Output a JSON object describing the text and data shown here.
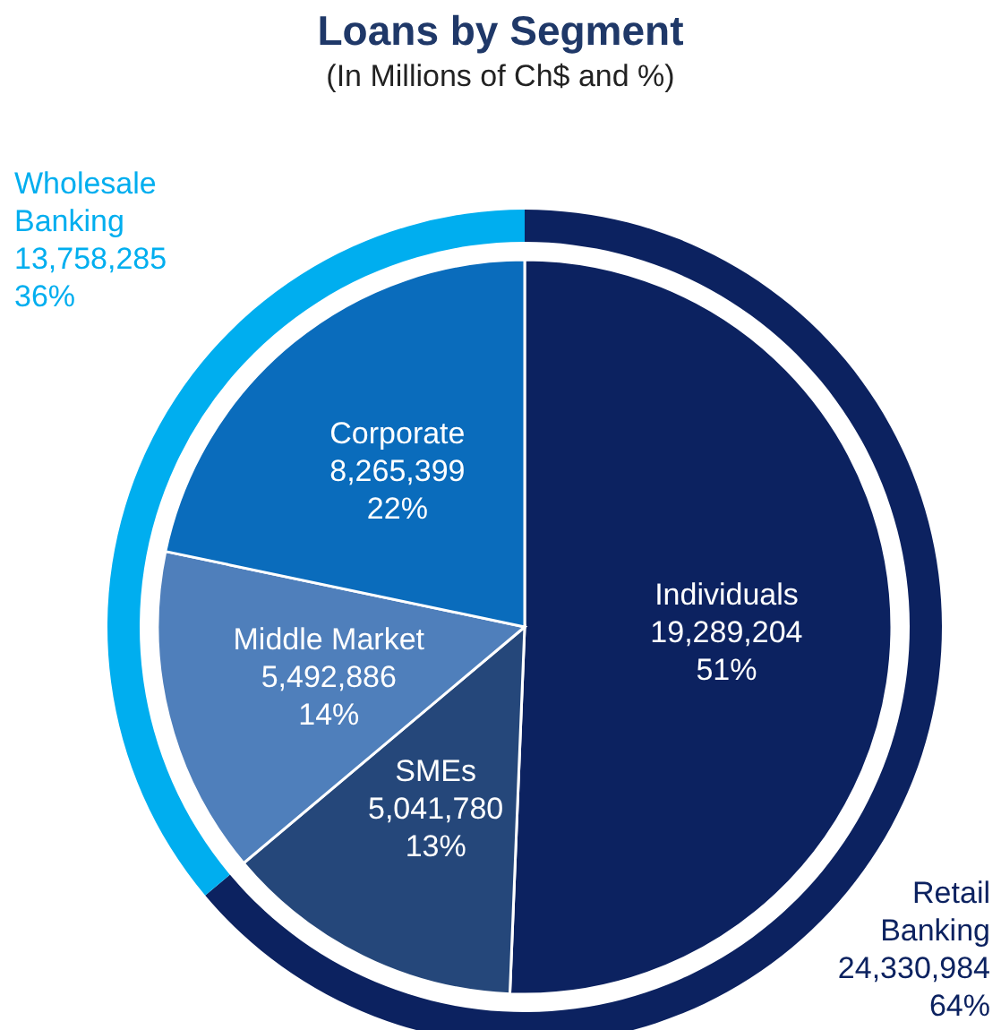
{
  "chart_data": [
    {
      "type": "pie",
      "title": "Loans by Segment",
      "subtitle": "(In Millions of Ch$ and %)",
      "categories": [
        "Individuals",
        "SMEs",
        "Middle Market",
        "Corporate"
      ],
      "values": [
        19289204,
        5041780,
        5492886,
        8265399
      ],
      "value_labels": [
        "19,289,204\n51%",
        "5,041,780\n13%",
        "5,492,886\n14%",
        "8,265,399\n22%"
      ],
      "colors": [
        "#0c2260",
        "#25477a",
        "#4f7fbb",
        "#0a6cbc"
      ]
    },
    {
      "type": "donut",
      "categories": [
        "Retail Banking",
        "Wholesale Banking"
      ],
      "values": [
        24330984,
        13758285
      ],
      "value_labels": [
        "24,330,984\n64%",
        "13,758,285\n36%"
      ],
      "colors": [
        "#0c2260",
        "#00aeef"
      ]
    }
  ]
}
